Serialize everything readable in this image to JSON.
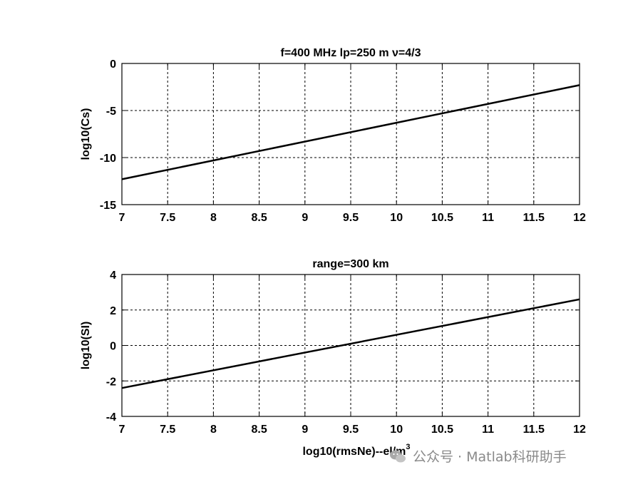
{
  "chart_data": [
    {
      "type": "line",
      "title": "f=400 MHz lp=250 m ν=4/3",
      "xlabel": "",
      "ylabel": "log10(Cs)",
      "xlim": [
        7,
        12
      ],
      "ylim": [
        -15,
        0
      ],
      "xticks": [
        7,
        7.5,
        8,
        8.5,
        9,
        9.5,
        10,
        10.5,
        11,
        11.5,
        12
      ],
      "xtick_labels": [
        "7",
        "7.5",
        "8",
        "8.5",
        "9",
        "9.5",
        "10",
        "10.5",
        "11",
        "11.5",
        "12"
      ],
      "yticks": [
        0,
        -5,
        -10,
        -15
      ],
      "ytick_labels": [
        "0",
        "-5",
        "-10",
        "-15"
      ],
      "grid": true,
      "series": [
        {
          "name": "Cs",
          "x": [
            7,
            12
          ],
          "y": [
            -12.3,
            -2.3
          ]
        }
      ]
    },
    {
      "type": "line",
      "title": "range=300 km",
      "xlabel": "log10(rmsNe)--el/m",
      "xlabel_superscript": "3",
      "ylabel": "log10(SI)",
      "xlim": [
        7,
        12
      ],
      "ylim": [
        -4,
        4
      ],
      "xticks": [
        7,
        7.5,
        8,
        8.5,
        9,
        9.5,
        10,
        10.5,
        11,
        11.5,
        12
      ],
      "xtick_labels": [
        "7",
        "7.5",
        "8",
        "8.5",
        "9",
        "9.5",
        "10",
        "10.5",
        "11",
        "11.5",
        "12"
      ],
      "yticks": [
        4,
        2,
        0,
        -2,
        -4
      ],
      "ytick_labels": [
        "4",
        "2",
        "0",
        "-2",
        "-4"
      ],
      "grid": true,
      "series": [
        {
          "name": "SI",
          "x": [
            7,
            12
          ],
          "y": [
            -2.4,
            2.6
          ]
        }
      ]
    }
  ],
  "watermark": {
    "text": "公众号 · Matlab科研助手",
    "icon": "wechat-icon"
  },
  "colors": {
    "line": "#000000",
    "grid": "#000000",
    "watermark": "#8a8a8a"
  }
}
